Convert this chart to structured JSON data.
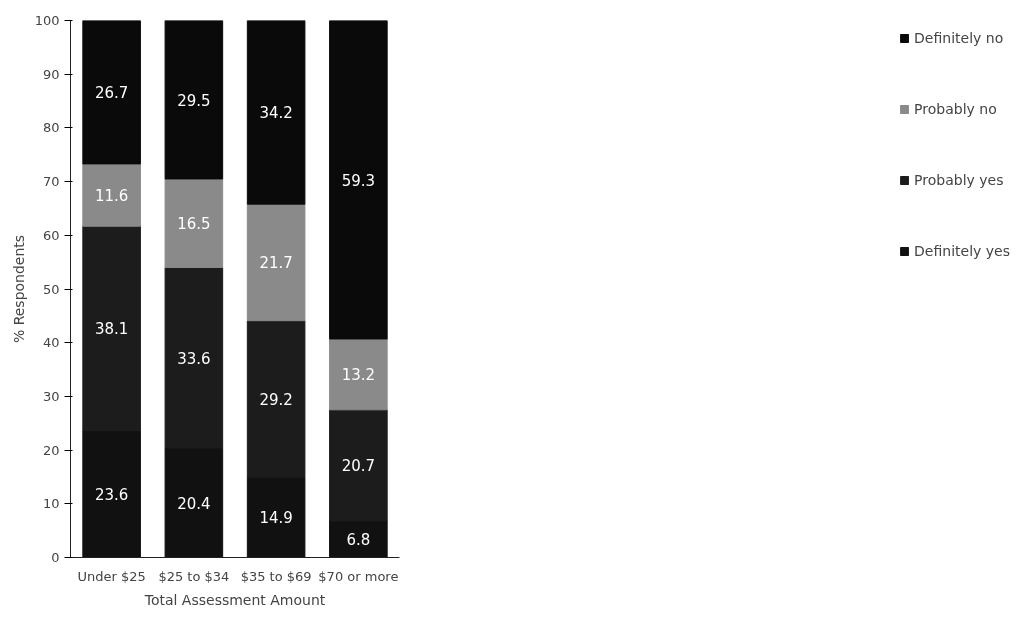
{
  "chart_data": {
    "type": "bar",
    "stacked": true,
    "xlabel": "Total Assessment Amount",
    "ylabel": "% Respondents",
    "categories": [
      "Under $25",
      "$25 to $34",
      "$35 to $69",
      "$70 or more"
    ],
    "series": [
      {
        "name": "Definitely yes",
        "color": "#111111",
        "values": [
          23.6,
          20.4,
          14.9,
          6.8
        ]
      },
      {
        "name": "Probably yes",
        "color": "#1c1c1c",
        "values": [
          38.1,
          33.6,
          29.2,
          20.7
        ]
      },
      {
        "name": "Probably no",
        "color": "#8a8a8a",
        "values": [
          11.6,
          16.5,
          21.7,
          13.2
        ]
      },
      {
        "name": "Definitely no",
        "color": "#0a0a0a",
        "values": [
          26.7,
          29.5,
          34.2,
          59.3
        ]
      }
    ],
    "ylim": [
      0,
      100
    ],
    "yticks": [
      0,
      10,
      20,
      30,
      40,
      50,
      60,
      70,
      80,
      90,
      100
    ],
    "grid": false,
    "legend": "right",
    "data_labels": true
  }
}
